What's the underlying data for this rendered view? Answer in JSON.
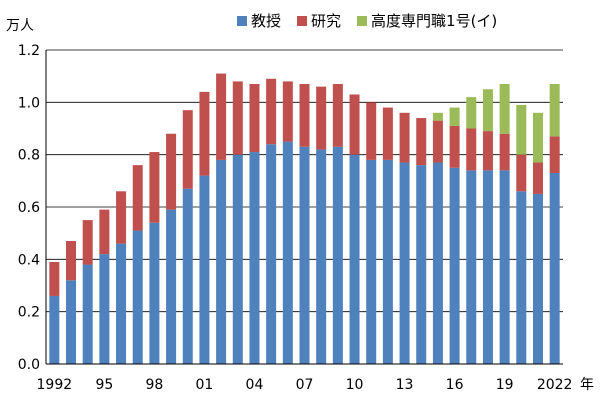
{
  "chart_data": {
    "type": "bar",
    "stacked": true,
    "y_unit_label": "万人",
    "x_unit_label": "年",
    "ylim": [
      0,
      1.2
    ],
    "yticks": [
      "0.0",
      "0.2",
      "0.4",
      "0.6",
      "0.8",
      "1.0",
      "1.2"
    ],
    "grid": "horizontal",
    "legend_position": "top-right",
    "x": [
      1992,
      1993,
      1994,
      1995,
      1996,
      1997,
      1998,
      1999,
      2000,
      2001,
      2002,
      2003,
      2004,
      2005,
      2006,
      2007,
      2008,
      2009,
      2010,
      2011,
      2012,
      2013,
      2014,
      2015,
      2016,
      2017,
      2018,
      2019,
      2020,
      2021,
      2022
    ],
    "x_tick_labels": [
      {
        "index": 0,
        "label": "1992"
      },
      {
        "index": 3,
        "label": "95"
      },
      {
        "index": 6,
        "label": "98"
      },
      {
        "index": 9,
        "label": "01"
      },
      {
        "index": 12,
        "label": "04"
      },
      {
        "index": 15,
        "label": "07"
      },
      {
        "index": 18,
        "label": "10"
      },
      {
        "index": 21,
        "label": "13"
      },
      {
        "index": 24,
        "label": "16"
      },
      {
        "index": 27,
        "label": "19"
      },
      {
        "index": 30,
        "label": "2022"
      }
    ],
    "series": [
      {
        "name": "教授",
        "color": "#4f81bd",
        "values": [
          0.26,
          0.32,
          0.38,
          0.42,
          0.46,
          0.51,
          0.54,
          0.59,
          0.67,
          0.72,
          0.78,
          0.8,
          0.81,
          0.84,
          0.85,
          0.83,
          0.82,
          0.83,
          0.8,
          0.78,
          0.78,
          0.77,
          0.76,
          0.77,
          0.75,
          0.74,
          0.74,
          0.74,
          0.66,
          0.65,
          0.73
        ]
      },
      {
        "name": "研究",
        "color": "#c0504d",
        "values": [
          0.13,
          0.15,
          0.17,
          0.17,
          0.2,
          0.25,
          0.27,
          0.29,
          0.3,
          0.32,
          0.33,
          0.28,
          0.26,
          0.25,
          0.23,
          0.24,
          0.24,
          0.24,
          0.23,
          0.22,
          0.2,
          0.19,
          0.18,
          0.16,
          0.16,
          0.16,
          0.15,
          0.14,
          0.14,
          0.12,
          0.14
        ]
      },
      {
        "name": "高度専門職1号(イ)",
        "color": "#9bbb59",
        "values": [
          0,
          0,
          0,
          0,
          0,
          0,
          0,
          0,
          0,
          0,
          0,
          0,
          0,
          0,
          0,
          0,
          0,
          0,
          0,
          0,
          0,
          0,
          0,
          0.03,
          0.07,
          0.12,
          0.16,
          0.19,
          0.19,
          0.19,
          0.2
        ]
      }
    ]
  }
}
